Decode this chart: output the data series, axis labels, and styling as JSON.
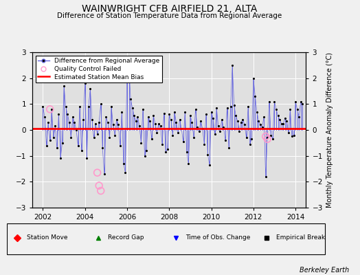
{
  "title": "WAINWRIGHT CFB AIRFIELD 21, ALTA",
  "subtitle": "Difference of Station Temperature Data from Regional Average",
  "ylabel": "Monthly Temperature Anomaly Difference (°C)",
  "xlabel_bottom": "Berkeley Earth",
  "mean_bias": 0.04,
  "ylim": [
    -3,
    3
  ],
  "xlim_start": 2001.5,
  "xlim_end": 2014.5,
  "xticks": [
    2002,
    2004,
    2006,
    2008,
    2010,
    2012,
    2014
  ],
  "yticks": [
    -3,
    -2,
    -1,
    0,
    1,
    2,
    3
  ],
  "bg_color": "#e0e0e0",
  "fig_color": "#f0f0f0",
  "line_color": "#6666dd",
  "dot_color": "#000000",
  "bias_color": "#ff0000",
  "qc_color": "#ff99cc",
  "title_fontsize": 10,
  "subtitle_fontsize": 8,
  "time_values": [
    2002.0,
    2002.083,
    2002.167,
    2002.25,
    2002.333,
    2002.417,
    2002.5,
    2002.583,
    2002.667,
    2002.75,
    2002.833,
    2002.917,
    2003.0,
    2003.083,
    2003.167,
    2003.25,
    2003.333,
    2003.417,
    2003.5,
    2003.583,
    2003.667,
    2003.75,
    2003.833,
    2003.917,
    2004.0,
    2004.083,
    2004.167,
    2004.25,
    2004.333,
    2004.417,
    2004.5,
    2004.583,
    2004.667,
    2004.75,
    2004.833,
    2004.917,
    2005.0,
    2005.083,
    2005.167,
    2005.25,
    2005.333,
    2005.417,
    2005.5,
    2005.583,
    2005.667,
    2005.75,
    2005.833,
    2005.917,
    2006.0,
    2006.083,
    2006.167,
    2006.25,
    2006.333,
    2006.417,
    2006.5,
    2006.583,
    2006.667,
    2006.75,
    2006.833,
    2006.917,
    2007.0,
    2007.083,
    2007.167,
    2007.25,
    2007.333,
    2007.417,
    2007.5,
    2007.583,
    2007.667,
    2007.75,
    2007.833,
    2007.917,
    2008.0,
    2008.083,
    2008.167,
    2008.25,
    2008.333,
    2008.417,
    2008.5,
    2008.583,
    2008.667,
    2008.75,
    2008.833,
    2008.917,
    2009.0,
    2009.083,
    2009.167,
    2009.25,
    2009.333,
    2009.417,
    2009.5,
    2009.583,
    2009.667,
    2009.75,
    2009.833,
    2009.917,
    2010.0,
    2010.083,
    2010.167,
    2010.25,
    2010.333,
    2010.417,
    2010.5,
    2010.583,
    2010.667,
    2010.75,
    2010.833,
    2010.917,
    2011.0,
    2011.083,
    2011.167,
    2011.25,
    2011.333,
    2011.417,
    2011.5,
    2011.583,
    2011.667,
    2011.75,
    2011.833,
    2011.917,
    2012.0,
    2012.083,
    2012.167,
    2012.25,
    2012.333,
    2012.417,
    2012.5,
    2012.583,
    2012.667,
    2012.75,
    2012.833,
    2012.917,
    2013.0,
    2013.083,
    2013.167,
    2013.25,
    2013.333,
    2013.417,
    2013.5,
    2013.583,
    2013.667,
    2013.75,
    2013.833,
    2013.917,
    2014.0,
    2014.083,
    2014.167,
    2014.25,
    2014.333
  ],
  "data_values": [
    0.9,
    0.5,
    -0.6,
    0.3,
    -0.4,
    0.8,
    -0.3,
    0.15,
    -0.7,
    0.6,
    -1.1,
    -0.5,
    1.7,
    0.9,
    0.6,
    0.3,
    -0.3,
    0.5,
    0.3,
    0.0,
    -0.6,
    0.9,
    -0.8,
    0.4,
    1.8,
    -1.1,
    0.9,
    1.6,
    0.4,
    -0.3,
    0.25,
    -0.15,
    0.3,
    1.0,
    -0.7,
    -1.7,
    0.5,
    0.3,
    -0.3,
    0.9,
    0.2,
    -0.2,
    0.4,
    0.2,
    -0.6,
    0.7,
    -1.3,
    -1.65,
    2.5,
    2.5,
    1.2,
    0.85,
    0.55,
    0.35,
    0.5,
    0.15,
    -0.5,
    0.8,
    -1.0,
    -0.8,
    0.5,
    0.35,
    -0.35,
    0.55,
    0.25,
    -0.1,
    0.25,
    0.15,
    -0.55,
    0.65,
    -0.85,
    -0.75,
    0.6,
    0.4,
    -0.2,
    0.7,
    0.3,
    -0.1,
    0.4,
    0.05,
    -0.45,
    0.7,
    -0.85,
    -1.3,
    0.55,
    0.3,
    -0.3,
    0.8,
    0.1,
    -0.05,
    0.35,
    0.05,
    -0.55,
    0.6,
    -0.95,
    -1.35,
    0.7,
    0.45,
    -0.15,
    0.85,
    0.15,
    -0.05,
    0.4,
    0.1,
    -0.4,
    0.85,
    -0.7,
    0.9,
    2.5,
    0.95,
    0.55,
    0.35,
    -0.05,
    0.3,
    0.4,
    0.2,
    -0.3,
    0.9,
    -0.55,
    -0.35,
    2.0,
    1.3,
    0.7,
    0.35,
    0.2,
    0.1,
    0.5,
    -1.8,
    -0.3,
    1.1,
    -0.2,
    -0.35,
    1.1,
    0.8,
    0.55,
    0.4,
    0.25,
    0.25,
    0.45,
    0.35,
    -0.1,
    0.8,
    -0.25,
    -0.2,
    1.1,
    0.8,
    0.5,
    1.1,
    1.0
  ],
  "qc_failed_times": [
    2002.333,
    2004.583,
    2004.667,
    2004.75,
    2012.583,
    2012.667
  ],
  "qc_failed_values": [
    0.8,
    -1.65,
    -2.15,
    -2.35,
    -0.25,
    -0.35
  ]
}
